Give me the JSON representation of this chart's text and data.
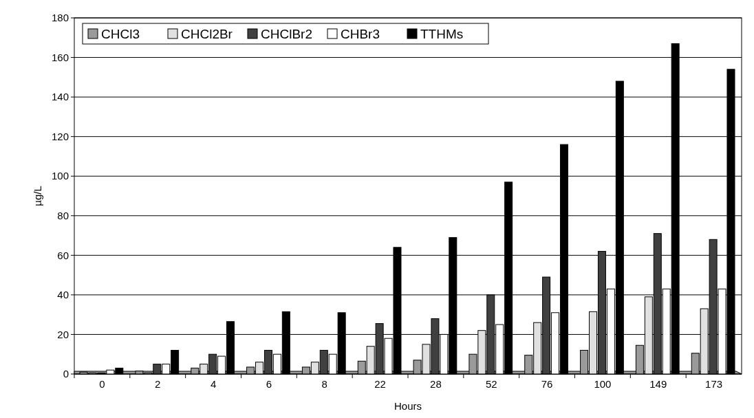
{
  "chart_data": {
    "type": "bar",
    "xlabel": "Hours",
    "ylabel": "µg/L",
    "categories": [
      "0",
      "2",
      "4",
      "6",
      "8",
      "22",
      "28",
      "52",
      "76",
      "100",
      "149",
      "173"
    ],
    "series": [
      {
        "name": "CHCl3",
        "color": "#9a9a9a",
        "values": [
          1,
          1.5,
          3,
          3.5,
          3.5,
          6.5,
          7,
          10,
          9.5,
          12,
          14.5,
          10.5
        ]
      },
      {
        "name": "CHCl2Br",
        "color": "#e0e0e0",
        "values": [
          0.5,
          0.5,
          5,
          6,
          6,
          14,
          15,
          22,
          26,
          31.5,
          39,
          33
        ]
      },
      {
        "name": "CHClBr2",
        "color": "#404040",
        "values": [
          0.5,
          5,
          10,
          12,
          12,
          25.5,
          28,
          40,
          49,
          62,
          71,
          68
        ]
      },
      {
        "name": "CHBr3",
        "color": "#ffffff",
        "values": [
          2,
          5,
          9,
          10,
          10,
          18,
          20,
          25,
          31,
          43,
          43,
          43
        ]
      },
      {
        "name": "TTHMs",
        "color": "#000000",
        "values": [
          3,
          12,
          26.5,
          31.5,
          31,
          64,
          69,
          97,
          116,
          148,
          167,
          154
        ]
      }
    ],
    "ylim": [
      0,
      180
    ],
    "yticks": [
      0,
      20,
      40,
      60,
      80,
      100,
      120,
      140,
      160,
      180
    ],
    "grid": "y",
    "legend": "top left"
  }
}
